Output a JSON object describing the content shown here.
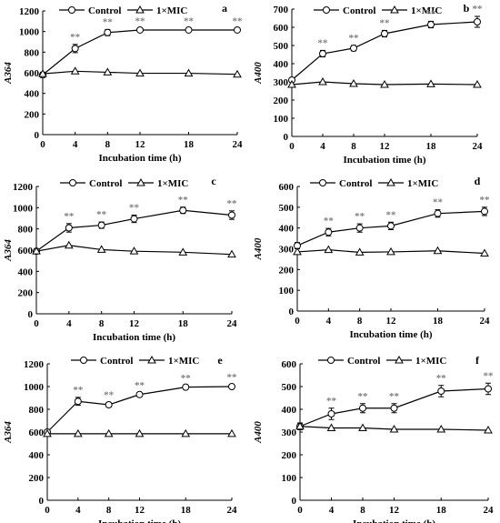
{
  "chart_data": [
    {
      "type": "line",
      "panel_letter": "a",
      "ylabel": "A364",
      "xlabel": "Incubation time (h)",
      "x": [
        0,
        4,
        8,
        12,
        18,
        24
      ],
      "xlim": [
        0,
        24
      ],
      "ylim": [
        0,
        1200
      ],
      "yticks": [
        0,
        200,
        400,
        600,
        800,
        1000,
        1200
      ],
      "grid": false,
      "legend_position": "top-left",
      "series": [
        {
          "name": "Control",
          "marker": "circle",
          "values": [
            580,
            835,
            990,
            1015,
            1015,
            1015
          ],
          "errors": [
            25,
            40,
            30,
            15,
            15,
            15
          ],
          "significance": [
            "",
            "**",
            "**",
            "**",
            "**",
            "**"
          ]
        },
        {
          "name": "1×MIC",
          "marker": "triangle",
          "values": [
            590,
            615,
            605,
            595,
            595,
            585
          ],
          "errors": [
            0,
            0,
            0,
            0,
            0,
            0
          ],
          "significance": [
            "",
            "",
            "",
            "",
            "",
            ""
          ]
        }
      ]
    },
    {
      "type": "line",
      "panel_letter": "b",
      "ylabel": "A400",
      "xlabel": "Incubation time (h)",
      "x": [
        0,
        4,
        8,
        12,
        18,
        24
      ],
      "xlim": [
        0,
        24
      ],
      "ylim": [
        0,
        700
      ],
      "yticks": [
        0,
        100,
        200,
        300,
        400,
        500,
        600,
        700
      ],
      "grid": false,
      "legend_position": "top-left",
      "series": [
        {
          "name": "Control",
          "marker": "circle",
          "values": [
            310,
            455,
            485,
            565,
            615,
            630
          ],
          "errors": [
            10,
            18,
            15,
            18,
            18,
            30
          ],
          "significance": [
            "",
            "**",
            "**",
            "**",
            "**",
            "**"
          ]
        },
        {
          "name": "1×MIC",
          "marker": "triangle",
          "values": [
            285,
            300,
            290,
            285,
            288,
            285
          ],
          "errors": [
            0,
            0,
            0,
            0,
            0,
            0
          ],
          "significance": [
            "",
            "",
            "",
            "",
            "",
            ""
          ]
        }
      ]
    },
    {
      "type": "line",
      "panel_letter": "c",
      "ylabel": "A364",
      "xlabel": "Incubation time (h)",
      "x": [
        0,
        4,
        8,
        12,
        18,
        24
      ],
      "xlim": [
        0,
        24
      ],
      "ylim": [
        0,
        1200
      ],
      "yticks": [
        0,
        200,
        400,
        600,
        800,
        1000,
        1200
      ],
      "grid": false,
      "legend_position": "top-left",
      "series": [
        {
          "name": "Control",
          "marker": "circle",
          "values": [
            590,
            810,
            835,
            895,
            975,
            930
          ],
          "errors": [
            20,
            40,
            30,
            35,
            30,
            40
          ],
          "significance": [
            "",
            "**",
            "**",
            "**",
            "**",
            "**"
          ]
        },
        {
          "name": "1×MIC",
          "marker": "triangle",
          "values": [
            590,
            645,
            605,
            590,
            580,
            560
          ],
          "errors": [
            0,
            0,
            0,
            0,
            0,
            0
          ],
          "significance": [
            "",
            "",
            "",
            "",
            "",
            ""
          ]
        }
      ]
    },
    {
      "type": "line",
      "panel_letter": "d",
      "ylabel": "A400",
      "xlabel": "Incubation time (h)",
      "x": [
        0,
        4,
        8,
        12,
        18,
        24
      ],
      "xlim": [
        0,
        24
      ],
      "ylim": [
        0,
        600
      ],
      "yticks": [
        0,
        100,
        200,
        300,
        400,
        500,
        600
      ],
      "grid": false,
      "legend_position": "top-left",
      "series": [
        {
          "name": "Control",
          "marker": "circle",
          "values": [
            315,
            380,
            400,
            410,
            470,
            480
          ],
          "errors": [
            15,
            18,
            20,
            18,
            18,
            20
          ],
          "significance": [
            "",
            "**",
            "**",
            "**",
            "**",
            "**"
          ]
        },
        {
          "name": "1×MIC",
          "marker": "triangle",
          "values": [
            285,
            295,
            283,
            285,
            290,
            278
          ],
          "errors": [
            0,
            0,
            0,
            0,
            0,
            0
          ],
          "significance": [
            "",
            "",
            "",
            "",
            "",
            ""
          ]
        }
      ]
    },
    {
      "type": "line",
      "panel_letter": "e",
      "ylabel": "A364",
      "xlabel": "Incubation time (h)",
      "x": [
        0,
        4,
        8,
        12,
        18,
        24
      ],
      "xlim": [
        0,
        24
      ],
      "ylim": [
        0,
        1200
      ],
      "yticks": [
        0,
        200,
        400,
        600,
        800,
        1000,
        1200
      ],
      "grid": false,
      "legend_position": "top-left",
      "series": [
        {
          "name": "Control",
          "marker": "circle",
          "values": [
            600,
            870,
            840,
            930,
            995,
            1000
          ],
          "errors": [
            15,
            35,
            20,
            15,
            15,
            15
          ],
          "significance": [
            "",
            "**",
            "**",
            "**",
            "**",
            "**"
          ]
        },
        {
          "name": "1×MIC",
          "marker": "triangle",
          "values": [
            585,
            585,
            585,
            585,
            585,
            585
          ],
          "errors": [
            0,
            0,
            0,
            0,
            0,
            0
          ],
          "significance": [
            "",
            "",
            "",
            "",
            "",
            ""
          ]
        }
      ]
    },
    {
      "type": "line",
      "panel_letter": "f",
      "ylabel": "A400",
      "xlabel": "Incubation time (h)",
      "x": [
        0,
        4,
        8,
        12,
        18,
        24
      ],
      "xlim": [
        0,
        24
      ],
      "ylim": [
        0,
        600
      ],
      "yticks": [
        0,
        100,
        200,
        300,
        400,
        500,
        600
      ],
      "grid": false,
      "legend_position": "top-left",
      "series": [
        {
          "name": "Control",
          "marker": "circle",
          "values": [
            325,
            380,
            405,
            405,
            480,
            490
          ],
          "errors": [
            15,
            25,
            20,
            20,
            25,
            25
          ],
          "significance": [
            "",
            "**",
            "**",
            "**",
            "**",
            "**"
          ]
        },
        {
          "name": "1×MIC",
          "marker": "triangle",
          "values": [
            325,
            318,
            318,
            312,
            312,
            308
          ],
          "errors": [
            0,
            0,
            0,
            0,
            0,
            0
          ],
          "significance": [
            "",
            "",
            "",
            "",
            "",
            ""
          ]
        }
      ]
    }
  ]
}
